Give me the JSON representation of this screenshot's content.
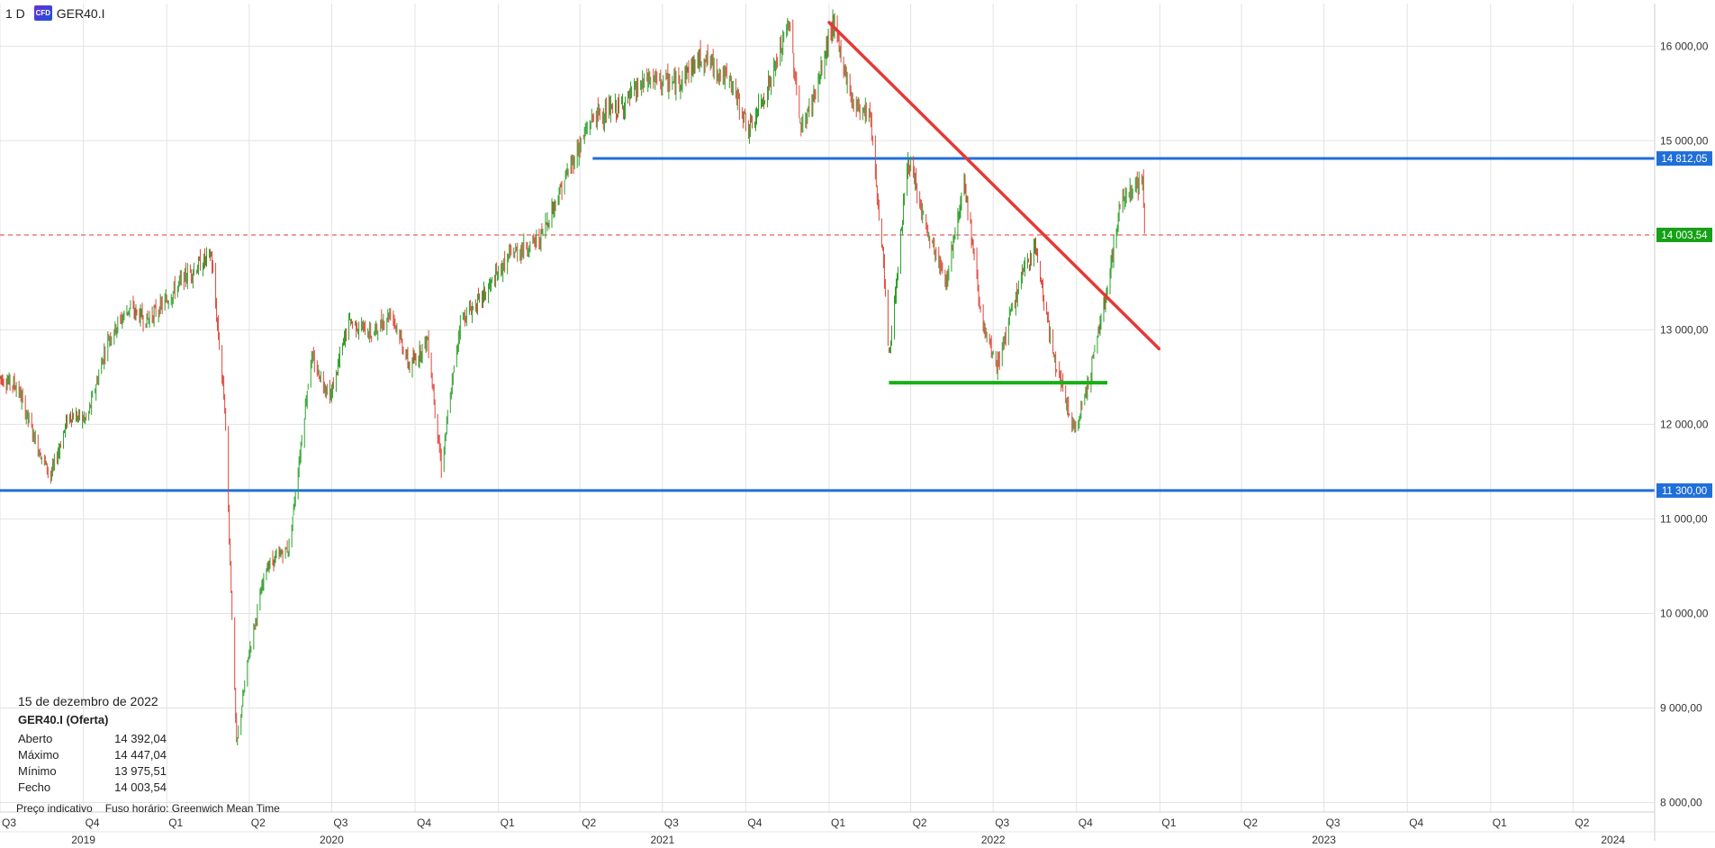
{
  "header": {
    "timeframe": "1 D",
    "instrument_badge": "CFD",
    "instrument": "GER40.I"
  },
  "info": {
    "date": "15 de dezembro de 2022",
    "title": "GER40.I (Oferta)",
    "rows": [
      {
        "label": "Aberto",
        "value": "14 392,04"
      },
      {
        "label": "Máximo",
        "value": "14 447,04"
      },
      {
        "label": "Mínimo",
        "value": "13 975,51"
      },
      {
        "label": "Fecho",
        "value": "14 003,54"
      }
    ],
    "price_note": "Preço indicativo",
    "timezone": "Fuso horário: Greenwich Mean Time"
  },
  "colors": {
    "up": "#2ca02c",
    "down": "#e0463a",
    "grid": "#e3e3e3",
    "level_line": "#1f6fd9",
    "trend_line": "#e53935",
    "support_line": "#16b016",
    "current_price": "#16a016",
    "current_dash": "#e53935"
  },
  "chart_data": {
    "type": "line",
    "title": "",
    "series": [
      {
        "values": [
          [
            "2019-07-01",
            12500
          ],
          [
            "2019-07-20",
            12400
          ],
          [
            "2019-08-10",
            11800
          ],
          [
            "2019-08-26",
            11450
          ],
          [
            "2019-09-15",
            12100
          ],
          [
            "2019-10-05",
            12050
          ],
          [
            "2019-10-28",
            12900
          ],
          [
            "2019-11-20",
            13230
          ],
          [
            "2019-12-10",
            13100
          ],
          [
            "2019-12-31",
            13300
          ],
          [
            "2020-01-20",
            13550
          ],
          [
            "2020-02-19",
            13790
          ],
          [
            "2020-03-05",
            12200
          ],
          [
            "2020-03-18",
            8600
          ],
          [
            "2020-04-01",
            9600
          ],
          [
            "2020-04-20",
            10500
          ],
          [
            "2020-05-15",
            10700
          ],
          [
            "2020-06-08",
            12700
          ],
          [
            "2020-06-30",
            12300
          ],
          [
            "2020-07-20",
            13100
          ],
          [
            "2020-08-15",
            12950
          ],
          [
            "2020-09-05",
            13200
          ],
          [
            "2020-09-25",
            12600
          ],
          [
            "2020-10-15",
            12900
          ],
          [
            "2020-10-30",
            11550
          ],
          [
            "2020-11-20",
            13100
          ],
          [
            "2020-12-15",
            13350
          ],
          [
            "2021-01-15",
            13800
          ],
          [
            "2021-02-15",
            13950
          ],
          [
            "2021-03-20",
            14700
          ],
          [
            "2021-04-15",
            15250
          ],
          [
            "2021-05-15",
            15350
          ],
          [
            "2021-06-15",
            15650
          ],
          [
            "2021-07-15",
            15600
          ],
          [
            "2021-08-15",
            15900
          ],
          [
            "2021-09-15",
            15600
          ],
          [
            "2021-10-05",
            15100
          ],
          [
            "2021-10-31",
            15700
          ],
          [
            "2021-11-18",
            16250
          ],
          [
            "2021-12-01",
            15100
          ],
          [
            "2021-12-20",
            15600
          ],
          [
            "2022-01-05",
            16250
          ],
          [
            "2022-01-27",
            15400
          ],
          [
            "2022-02-15",
            15300
          ],
          [
            "2022-03-01",
            13800
          ],
          [
            "2022-03-08",
            12700
          ],
          [
            "2022-03-29",
            14800
          ],
          [
            "2022-04-20",
            14000
          ],
          [
            "2022-05-10",
            13500
          ],
          [
            "2022-05-30",
            14600
          ],
          [
            "2022-06-20",
            13000
          ],
          [
            "2022-07-05",
            12600
          ],
          [
            "2022-07-30",
            13500
          ],
          [
            "2022-08-16",
            13900
          ],
          [
            "2022-09-05",
            12750
          ],
          [
            "2022-09-29",
            11900
          ],
          [
            "2022-10-15",
            12500
          ],
          [
            "2022-11-01",
            13300
          ],
          [
            "2022-11-20",
            14400
          ],
          [
            "2022-12-01",
            14500
          ],
          [
            "2022-12-13",
            14550
          ],
          [
            "2022-12-15",
            14003.54
          ]
        ]
      }
    ],
    "y_ticks": [
      "16 000,00",
      "15 000,00",
      "13 000,00",
      "12 000,00",
      "11 000,00",
      "10 000,00",
      "9 000,00",
      "8 000,00"
    ],
    "ylim": [
      7900,
      16450
    ],
    "xlim": [
      "2019-07-01",
      "2024-06-30"
    ],
    "quarter_ticks": [
      {
        "label": "Q3",
        "date": "2019-07-01"
      },
      {
        "label": "Q4",
        "date": "2019-10-01"
      },
      {
        "label": "Q1",
        "date": "2020-01-01"
      },
      {
        "label": "Q2",
        "date": "2020-04-01"
      },
      {
        "label": "Q3",
        "date": "2020-07-01"
      },
      {
        "label": "Q4",
        "date": "2020-10-01"
      },
      {
        "label": "Q1",
        "date": "2021-01-01"
      },
      {
        "label": "Q2",
        "date": "2021-04-01"
      },
      {
        "label": "Q3",
        "date": "2021-07-01"
      },
      {
        "label": "Q4",
        "date": "2021-10-01"
      },
      {
        "label": "Q1",
        "date": "2022-01-01"
      },
      {
        "label": "Q2",
        "date": "2022-04-01"
      },
      {
        "label": "Q3",
        "date": "2022-07-01"
      },
      {
        "label": "Q4",
        "date": "2022-10-01"
      },
      {
        "label": "Q1",
        "date": "2023-01-01"
      },
      {
        "label": "Q2",
        "date": "2023-04-01"
      },
      {
        "label": "Q3",
        "date": "2023-07-01"
      },
      {
        "label": "Q4",
        "date": "2023-10-01"
      },
      {
        "label": "Q1",
        "date": "2024-01-01"
      },
      {
        "label": "Q2",
        "date": "2024-04-01"
      }
    ],
    "year_ticks": [
      {
        "label": "2019",
        "date": "2019-10-01"
      },
      {
        "label": "2020",
        "date": "2020-07-01"
      },
      {
        "label": "2021",
        "date": "2021-07-01"
      },
      {
        "label": "2022",
        "date": "2022-07-01"
      },
      {
        "label": "2023",
        "date": "2023-07-01"
      },
      {
        "label": "2024",
        "date": "2024-05-15"
      }
    ],
    "horizontal_levels": [
      {
        "value": 14812.05,
        "label": "14 812,05",
        "from": "2021-04-15",
        "to": "2024-06-30"
      },
      {
        "value": 11300.0,
        "label": "11 300,00",
        "from": "2019-07-01",
        "to": "2024-06-30"
      }
    ],
    "current_price": {
      "value": 14003.54,
      "label": "14 003,54"
    },
    "trend_line": {
      "from": [
        "2022-01-01",
        16250
      ],
      "to": [
        "2022-12-31",
        12800
      ]
    },
    "support_line": {
      "from": [
        "2022-03-08",
        12440
      ],
      "to": [
        "2022-11-04",
        12440
      ]
    }
  }
}
